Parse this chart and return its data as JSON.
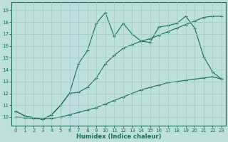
{
  "xlabel": "Humidex (Indice chaleur)",
  "xlim": [
    -0.5,
    23.5
  ],
  "ylim": [
    9.3,
    19.7
  ],
  "xticks": [
    0,
    1,
    2,
    3,
    4,
    5,
    6,
    7,
    8,
    9,
    10,
    11,
    12,
    13,
    14,
    15,
    16,
    17,
    18,
    19,
    20,
    21,
    22,
    23
  ],
  "yticks": [
    10,
    11,
    12,
    13,
    14,
    15,
    16,
    17,
    18,
    19
  ],
  "bg_color": "#bde0de",
  "grid_color": "#a0c8c8",
  "line_color": "#1a6b5a",
  "line1_x": [
    0,
    1,
    3,
    4,
    5,
    6,
    7,
    8,
    9,
    10,
    11,
    12,
    13,
    14,
    15,
    16,
    17,
    18,
    19,
    20,
    21,
    22,
    23
  ],
  "line1_y": [
    10.5,
    10.1,
    9.8,
    10.2,
    11.0,
    12.0,
    14.5,
    15.6,
    17.9,
    18.8,
    16.8,
    17.9,
    17.0,
    16.4,
    16.3,
    17.6,
    17.7,
    17.9,
    18.5,
    17.5,
    15.1,
    13.8,
    13.2
  ],
  "line2_x": [
    0,
    1,
    3,
    4,
    5,
    6,
    7,
    8,
    9,
    10,
    11,
    12,
    13,
    14,
    15,
    16,
    17,
    18,
    19,
    20,
    21,
    22,
    23
  ],
  "line2_y": [
    10.5,
    10.1,
    9.8,
    10.2,
    11.0,
    12.0,
    12.1,
    12.5,
    13.3,
    14.5,
    15.2,
    15.8,
    16.1,
    16.4,
    16.6,
    16.9,
    17.2,
    17.5,
    17.8,
    18.1,
    18.4,
    18.5,
    18.5
  ],
  "line3_x": [
    0,
    1,
    2,
    3,
    4,
    5,
    6,
    7,
    8,
    9,
    10,
    11,
    12,
    13,
    14,
    15,
    16,
    17,
    18,
    19,
    20,
    21,
    22,
    23
  ],
  "line3_y": [
    10.0,
    9.95,
    9.9,
    9.85,
    9.9,
    10.0,
    10.2,
    10.4,
    10.6,
    10.8,
    11.1,
    11.4,
    11.7,
    12.0,
    12.3,
    12.5,
    12.7,
    12.9,
    13.0,
    13.1,
    13.2,
    13.3,
    13.4,
    13.2
  ]
}
